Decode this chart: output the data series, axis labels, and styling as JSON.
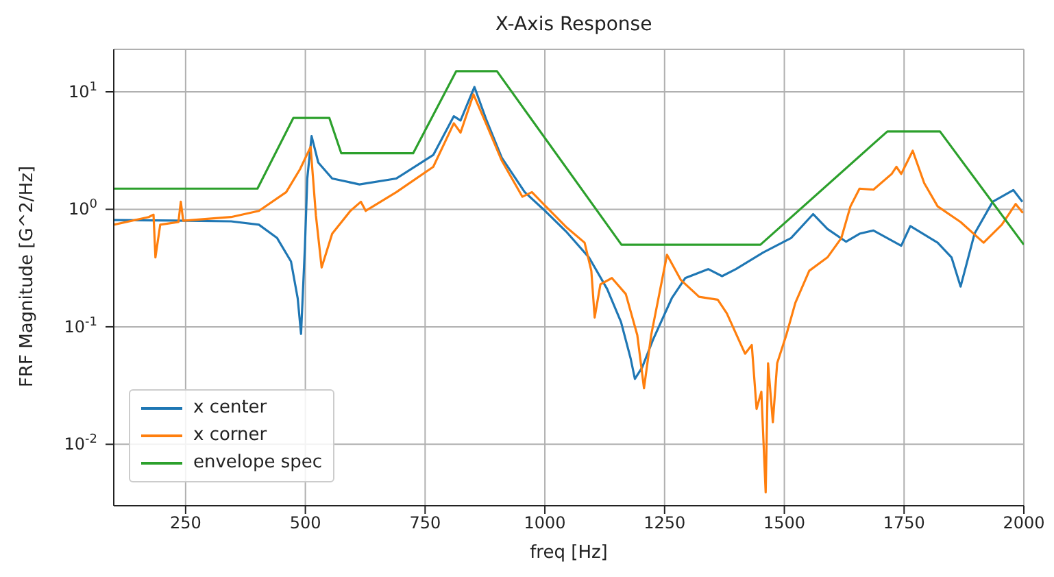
{
  "chart_data": {
    "type": "line",
    "title": "X-Axis Response",
    "xlabel": "freq [Hz]",
    "ylabel": "FRF Magnitude [G^2/Hz]",
    "xlim": [
      100,
      2000
    ],
    "xticks": [
      250,
      500,
      750,
      1000,
      1250,
      1500,
      1750,
      2000
    ],
    "ylim": [
      0.003,
      23
    ],
    "yticks": [
      {
        "value": 0.01,
        "label": "10$^{-2}$"
      },
      {
        "value": 0.1,
        "label": "10$^{-1}$"
      },
      {
        "value": 1,
        "label": "10$^{0}$"
      },
      {
        "value": 10,
        "label": "10$^{1}$"
      }
    ],
    "log": "y",
    "grid": true,
    "legend": "bottom left",
    "marker": "none",
    "line_style": "solid",
    "series": [
      {
        "name": "x center",
        "color": "#1f77b4",
        "x": [
          100,
          250,
          345,
          403,
          441,
          470,
          484,
          491,
          499,
          504,
          513,
          527,
          556,
          613,
          690,
          767,
          810,
          824,
          853,
          877,
          910,
          958,
          997,
          1044,
          1092,
          1130,
          1159,
          1179,
          1188,
          1203,
          1226,
          1265,
          1293,
          1341,
          1370,
          1399,
          1456,
          1514,
          1560,
          1590,
          1629,
          1657,
          1686,
          1744,
          1763,
          1820,
          1849,
          1868,
          1897,
          1935,
          1978,
          1997
        ],
        "values": [
          0.81,
          0.8,
          0.79,
          0.74,
          0.57,
          0.36,
          0.175,
          0.087,
          0.47,
          1.83,
          4.2,
          2.5,
          1.83,
          1.63,
          1.83,
          2.9,
          6.2,
          5.7,
          11,
          5.9,
          2.75,
          1.4,
          1.0,
          0.65,
          0.39,
          0.21,
          0.11,
          0.054,
          0.036,
          0.045,
          0.078,
          0.175,
          0.26,
          0.31,
          0.27,
          0.31,
          0.43,
          0.57,
          0.91,
          0.68,
          0.53,
          0.62,
          0.66,
          0.49,
          0.72,
          0.52,
          0.39,
          0.22,
          0.62,
          1.16,
          1.46,
          1.16
        ]
      },
      {
        "name": "x corner",
        "color": "#ff7f0e",
        "x": [
          100,
          173,
          183,
          187,
          197,
          235,
          240,
          245,
          345,
          403,
          460,
          489,
          511,
          522,
          534,
          556,
          594,
          616,
          626,
          690,
          767,
          810,
          824,
          851,
          877,
          910,
          953,
          973,
          997,
          1044,
          1083,
          1097,
          1104,
          1116,
          1140,
          1169,
          1193,
          1207,
          1222,
          1255,
          1284,
          1322,
          1361,
          1380,
          1418,
          1432,
          1442,
          1452,
          1461,
          1466,
          1476,
          1485,
          1504,
          1523,
          1552,
          1590,
          1619,
          1638,
          1657,
          1686,
          1724,
          1734,
          1744,
          1768,
          1792,
          1820,
          1868,
          1916,
          1954,
          1983,
          1998
        ],
        "values": [
          0.74,
          0.86,
          0.9,
          0.39,
          0.74,
          0.78,
          1.16,
          0.8,
          0.86,
          0.97,
          1.4,
          2.2,
          3.4,
          0.89,
          0.32,
          0.62,
          0.97,
          1.16,
          0.97,
          1.4,
          2.3,
          5.4,
          4.5,
          9.5,
          5.4,
          2.6,
          1.28,
          1.4,
          1.11,
          0.71,
          0.52,
          0.3,
          0.12,
          0.23,
          0.26,
          0.19,
          0.085,
          0.03,
          0.085,
          0.41,
          0.25,
          0.18,
          0.17,
          0.13,
          0.059,
          0.07,
          0.02,
          0.028,
          0.0039,
          0.049,
          0.0154,
          0.049,
          0.085,
          0.16,
          0.3,
          0.39,
          0.57,
          1.06,
          1.5,
          1.47,
          2.0,
          2.3,
          2.0,
          3.15,
          1.67,
          1.06,
          0.78,
          0.52,
          0.74,
          1.11,
          0.93
        ]
      },
      {
        "name": "envelope spec",
        "color": "#2ca02c",
        "x": [
          100,
          400,
          475,
          550,
          575,
          725,
          815,
          900,
          1160,
          1450,
          1715,
          1825,
          2000
        ],
        "values": [
          1.5,
          1.5,
          6,
          6,
          3,
          3,
          15,
          15,
          0.5,
          0.5,
          4.6,
          4.6,
          0.5
        ]
      }
    ]
  }
}
